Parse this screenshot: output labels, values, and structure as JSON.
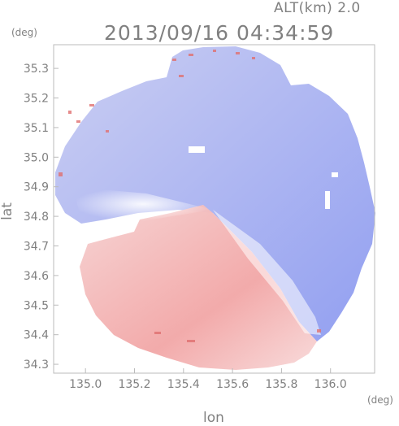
{
  "header": {
    "altitude_label": "ALT(km) 2.0",
    "timestamp": "2013/09/16 04:34:59"
  },
  "axes": {
    "y_unit": "(deg)",
    "x_unit": "(deg)",
    "y_label": "lat",
    "x_label": "lon",
    "y_ticks": [
      "35.3",
      "35.2",
      "35.1",
      "35.0",
      "34.9",
      "34.8",
      "34.7",
      "34.6",
      "34.5",
      "34.4",
      "34.3"
    ],
    "x_ticks": [
      "135.0",
      "135.2",
      "135.4",
      "135.6",
      "135.8",
      "136.0"
    ],
    "lat_range": [
      34.27,
      35.38
    ],
    "lon_range": [
      134.87,
      136.18
    ]
  },
  "radar": {
    "center_lon": 135.5,
    "center_lat": 34.84,
    "colors": {
      "approaching": "#8a9af0",
      "receding": "#f0a0a0",
      "neutral": "#ffffff"
    }
  }
}
